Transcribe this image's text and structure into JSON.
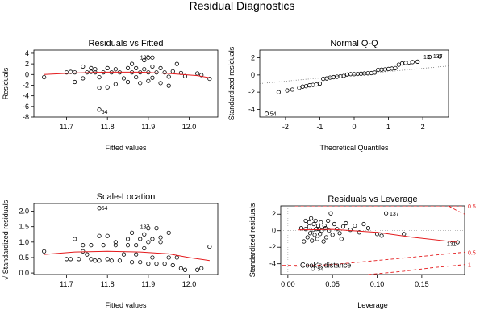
{
  "figure": {
    "title": "Residual Diagnostics"
  },
  "chart_data": [
    {
      "type": "scatter",
      "title": "Residuals vs Fitted",
      "xlabel": "Fitted values",
      "ylabel": "Residuals",
      "xlim": [
        11.62,
        12.07
      ],
      "ylim": [
        -8,
        4.6
      ],
      "xticks": [
        11.7,
        11.8,
        11.9,
        12.0
      ],
      "xtick_labels": [
        "11.7",
        "11.8",
        "11.9",
        "12.0"
      ],
      "yticks": [
        -8,
        -6,
        -4,
        -2,
        0,
        2,
        4
      ],
      "ytick_labels": [
        "-8",
        "-6",
        "-4",
        "-2",
        "0",
        "2",
        "4"
      ],
      "points": [
        [
          11.645,
          -0.5
        ],
        [
          11.7,
          0.4
        ],
        [
          11.71,
          0.5
        ],
        [
          11.72,
          -1.4
        ],
        [
          11.72,
          0.4
        ],
        [
          11.74,
          1.5
        ],
        [
          11.74,
          -0.7
        ],
        [
          11.75,
          0.4
        ],
        [
          11.76,
          1.2
        ],
        [
          11.76,
          0.5
        ],
        [
          11.77,
          1.0
        ],
        [
          11.77,
          0.4
        ],
        [
          11.78,
          -0.5
        ],
        [
          11.78,
          -2.5
        ],
        [
          11.79,
          0.4
        ],
        [
          11.8,
          1.2
        ],
        [
          11.8,
          -2.4
        ],
        [
          11.81,
          0.4
        ],
        [
          11.82,
          1.0
        ],
        [
          11.82,
          -1.8
        ],
        [
          11.83,
          0.4
        ],
        [
          11.84,
          -0.7
        ],
        [
          11.85,
          1.2
        ],
        [
          11.85,
          -1.4
        ],
        [
          11.86,
          0.4
        ],
        [
          11.86,
          2.0
        ],
        [
          11.87,
          1.2
        ],
        [
          11.87,
          -0.5
        ],
        [
          11.88,
          0.4
        ],
        [
          11.88,
          -1.6
        ],
        [
          11.89,
          1.0
        ],
        [
          11.89,
          2.7
        ],
        [
          11.9,
          0.4
        ],
        [
          11.9,
          -1.2
        ],
        [
          11.91,
          1.5
        ],
        [
          11.91,
          -0.6
        ],
        [
          11.92,
          0.4
        ],
        [
          11.93,
          1.2
        ],
        [
          11.93,
          -1.6
        ],
        [
          11.94,
          0.4
        ],
        [
          11.95,
          -0.4
        ],
        [
          11.95,
          -2.1
        ],
        [
          11.96,
          0.6
        ],
        [
          11.97,
          2.0
        ],
        [
          11.98,
          0.3
        ],
        [
          11.99,
          -0.3
        ],
        [
          12.02,
          0.2
        ],
        [
          12.03,
          -0.1
        ],
        [
          12.05,
          -0.8
        ],
        [
          11.9,
          3.2
        ],
        [
          11.91,
          3.2
        ],
        [
          11.78,
          -6.6
        ]
      ],
      "smooth": [
        [
          11.645,
          0.0
        ],
        [
          11.72,
          0.3
        ],
        [
          11.8,
          0.45
        ],
        [
          11.88,
          0.45
        ],
        [
          11.95,
          0.2
        ],
        [
          12.02,
          -0.2
        ],
        [
          12.05,
          -0.6
        ]
      ],
      "labels": [
        {
          "text": "137",
          "x": 11.88,
          "y": 3.3
        },
        {
          "text": "54",
          "x": 11.785,
          "y": -6.9
        }
      ]
    },
    {
      "type": "scatter",
      "title": "Normal Q-Q",
      "xlabel": "Theoretical Quantiles",
      "ylabel": "Standardized residuals",
      "xlim": [
        -2.75,
        2.75
      ],
      "ylim": [
        -4.9,
        2.9
      ],
      "xticks": [
        -2,
        -1,
        0,
        1,
        2
      ],
      "xtick_labels": [
        "-2",
        "-1",
        "0",
        "1",
        "2"
      ],
      "yticks": [
        -4,
        -2,
        0,
        2
      ],
      "ytick_labels": [
        "-4",
        "-2",
        "0",
        "2"
      ],
      "points": [
        [
          -2.55,
          -4.5
        ],
        [
          -2.2,
          -2.0
        ],
        [
          -1.95,
          -1.8
        ],
        [
          -1.8,
          -1.7
        ],
        [
          -1.6,
          -1.5
        ],
        [
          -1.5,
          -1.35
        ],
        [
          -1.4,
          -1.3
        ],
        [
          -1.3,
          -1.2
        ],
        [
          -1.2,
          -1.15
        ],
        [
          -1.1,
          -1.1
        ],
        [
          -1.0,
          -1.0
        ],
        [
          -0.9,
          -0.45
        ],
        [
          -0.8,
          -0.4
        ],
        [
          -0.7,
          -0.3
        ],
        [
          -0.6,
          -0.25
        ],
        [
          -0.5,
          -0.2
        ],
        [
          -0.4,
          -0.15
        ],
        [
          -0.3,
          -0.1
        ],
        [
          -0.2,
          0.05
        ],
        [
          -0.1,
          0.1
        ],
        [
          0.0,
          0.1
        ],
        [
          0.1,
          0.12
        ],
        [
          0.2,
          0.15
        ],
        [
          0.3,
          0.18
        ],
        [
          0.4,
          0.2
        ],
        [
          0.5,
          0.22
        ],
        [
          0.6,
          0.28
        ],
        [
          0.7,
          0.6
        ],
        [
          0.8,
          0.62
        ],
        [
          0.9,
          0.65
        ],
        [
          1.0,
          0.7
        ],
        [
          1.1,
          0.75
        ],
        [
          1.2,
          0.8
        ],
        [
          1.3,
          1.2
        ],
        [
          1.4,
          1.35
        ],
        [
          1.5,
          1.4
        ],
        [
          1.6,
          1.45
        ],
        [
          1.7,
          1.5
        ],
        [
          1.85,
          1.55
        ],
        [
          2.2,
          2.1
        ],
        [
          2.5,
          2.15
        ]
      ],
      "refline": [
        [
          -2.75,
          -1.0
        ],
        [
          2.75,
          1.05
        ]
      ],
      "labels": [
        {
          "text": "54",
          "x": -2.45,
          "y": -4.5
        },
        {
          "text": "13",
          "x": 2.02,
          "y": 2.15
        },
        {
          "text": "137",
          "x": 2.3,
          "y": 2.25
        }
      ]
    },
    {
      "type": "scatter",
      "title": "Scale-Location",
      "xlabel": "Fitted values",
      "ylabel": "√|Standardized residuals|",
      "xlim": [
        11.62,
        12.07
      ],
      "ylim": [
        -0.05,
        2.25
      ],
      "xticks": [
        11.7,
        11.8,
        11.9,
        12.0
      ],
      "xtick_labels": [
        "11.7",
        "11.8",
        "11.9",
        "12.0"
      ],
      "yticks": [
        0.0,
        0.5,
        1.0,
        1.5,
        2.0
      ],
      "ytick_labels": [
        "0.0",
        "0.5",
        "1.0",
        "1.5",
        "2.0"
      ],
      "points": [
        [
          11.645,
          0.7
        ],
        [
          11.7,
          0.45
        ],
        [
          11.71,
          0.45
        ],
        [
          11.72,
          1.1
        ],
        [
          11.73,
          0.45
        ],
        [
          11.74,
          0.9
        ],
        [
          11.74,
          0.7
        ],
        [
          11.75,
          0.6
        ],
        [
          11.76,
          0.9
        ],
        [
          11.76,
          0.45
        ],
        [
          11.77,
          0.4
        ],
        [
          11.78,
          1.2
        ],
        [
          11.78,
          0.4
        ],
        [
          11.79,
          0.9
        ],
        [
          11.8,
          0.45
        ],
        [
          11.8,
          1.2
        ],
        [
          11.81,
          0.4
        ],
        [
          11.82,
          0.9
        ],
        [
          11.82,
          1.0
        ],
        [
          11.83,
          0.4
        ],
        [
          11.84,
          0.6
        ],
        [
          11.85,
          0.9
        ],
        [
          11.85,
          1.1
        ],
        [
          11.86,
          0.35
        ],
        [
          11.86,
          1.3
        ],
        [
          11.87,
          0.9
        ],
        [
          11.87,
          0.6
        ],
        [
          11.88,
          0.35
        ],
        [
          11.88,
          1.1
        ],
        [
          11.89,
          0.8
        ],
        [
          11.89,
          1.25
        ],
        [
          11.9,
          0.3
        ],
        [
          11.9,
          1.0
        ],
        [
          11.91,
          1.1
        ],
        [
          11.91,
          0.5
        ],
        [
          11.92,
          0.3
        ],
        [
          11.93,
          1.0
        ],
        [
          11.93,
          1.15
        ],
        [
          11.94,
          0.3
        ],
        [
          11.95,
          0.5
        ],
        [
          11.95,
          1.3
        ],
        [
          11.96,
          0.25
        ],
        [
          11.97,
          0.5
        ],
        [
          11.98,
          0.15
        ],
        [
          11.99,
          0.1
        ],
        [
          12.02,
          0.1
        ],
        [
          12.03,
          0.15
        ],
        [
          12.05,
          0.85
        ],
        [
          11.9,
          1.45
        ],
        [
          11.92,
          1.45
        ],
        [
          11.78,
          2.1
        ]
      ],
      "smooth": [
        [
          11.645,
          0.6
        ],
        [
          11.72,
          0.68
        ],
        [
          11.8,
          0.7
        ],
        [
          11.88,
          0.68
        ],
        [
          11.95,
          0.62
        ],
        [
          12.0,
          0.5
        ],
        [
          12.05,
          0.4
        ]
      ],
      "labels": [
        {
          "text": "54",
          "x": 11.785,
          "y": 2.12
        },
        {
          "text": "137",
          "x": 11.88,
          "y": 1.5
        }
      ]
    },
    {
      "type": "scatter",
      "title": "Residuals vs Leverage",
      "xlabel": "Leverage",
      "ylabel": "Standardized residuals",
      "xlim": [
        -0.008,
        0.198
      ],
      "ylim": [
        -5.3,
        3.0
      ],
      "xticks": [
        0.0,
        0.05,
        0.1,
        0.15
      ],
      "xtick_labels": [
        "0.00",
        "0.05",
        "0.10",
        "0.15"
      ],
      "yticks": [
        -4,
        -2,
        0,
        2
      ],
      "ytick_labels": [
        "-4",
        "-2",
        "0",
        "2"
      ],
      "points": [
        [
          0.015,
          0.3
        ],
        [
          0.018,
          -1.3
        ],
        [
          0.02,
          1.2
        ],
        [
          0.02,
          0.2
        ],
        [
          0.022,
          -0.8
        ],
        [
          0.024,
          1.0
        ],
        [
          0.024,
          0.5
        ],
        [
          0.025,
          -0.3
        ],
        [
          0.026,
          1.5
        ],
        [
          0.027,
          -1.2
        ],
        [
          0.028,
          0.1
        ],
        [
          0.029,
          0.8
        ],
        [
          0.03,
          -0.5
        ],
        [
          0.031,
          1.2
        ],
        [
          0.032,
          0.2
        ],
        [
          0.033,
          -1.0
        ],
        [
          0.034,
          0.6
        ],
        [
          0.035,
          0.2
        ],
        [
          0.036,
          -0.4
        ],
        [
          0.037,
          1.0
        ],
        [
          0.038,
          0.0
        ],
        [
          0.04,
          -1.3
        ],
        [
          0.041,
          0.6
        ],
        [
          0.042,
          0.3
        ],
        [
          0.043,
          -0.8
        ],
        [
          0.045,
          1.2
        ],
        [
          0.046,
          0.0
        ],
        [
          0.048,
          2.1
        ],
        [
          0.05,
          -0.5
        ],
        [
          0.052,
          0.8
        ],
        [
          0.055,
          0.2
        ],
        [
          0.058,
          -0.3
        ],
        [
          0.06,
          -1.0
        ],
        [
          0.062,
          0.5
        ],
        [
          0.065,
          0.9
        ],
        [
          0.07,
          0.1
        ],
        [
          0.075,
          0.6
        ],
        [
          0.08,
          -0.2
        ],
        [
          0.085,
          0.8
        ],
        [
          0.09,
          0.3
        ],
        [
          0.1,
          -0.4
        ],
        [
          0.105,
          -0.6
        ],
        [
          0.11,
          2.1
        ],
        [
          0.13,
          -0.4
        ],
        [
          0.19,
          -1.4
        ],
        [
          0.028,
          -4.6
        ]
      ],
      "smooth": [
        [
          0.012,
          0.1
        ],
        [
          0.05,
          0.15
        ],
        [
          0.1,
          -0.2
        ],
        [
          0.14,
          -0.8
        ],
        [
          0.19,
          -1.4
        ]
      ],
      "cooks_lines": [
        {
          "label": "0.5",
          "points": [
            [
              0.008,
              -4.3
            ],
            [
              0.05,
              -4.1
            ],
            [
              0.1,
              -3.6
            ],
            [
              0.15,
              -3.1
            ],
            [
              0.198,
              -2.6
            ]
          ]
        },
        {
          "label": "1",
          "points": [
            [
              0.09,
              -5.3
            ],
            [
              0.13,
              -4.9
            ],
            [
              0.16,
              -4.5
            ],
            [
              0.198,
              -4.1
            ]
          ]
        },
        {
          "label": "0.5",
          "points": [
            [
              0.008,
              3.0
            ],
            [
              0.198,
              3.0
            ]
          ]
        },
        {
          "label": "",
          "points": [
            [
              0.18,
              3.0
            ],
            [
              0.19,
              2.4
            ],
            [
              0.198,
              2.0
            ]
          ]
        }
      ],
      "cooks_legend": "Cook's distance",
      "margin_labels": [
        {
          "text": "0.5",
          "y": 3.0
        },
        {
          "text": "0.5",
          "y": -2.6
        },
        {
          "text": "1",
          "y": -4.1
        }
      ],
      "labels": [
        {
          "text": "137",
          "x": 0.114,
          "y": 2.1
        },
        {
          "text": "131",
          "x": 0.178,
          "y": -1.55
        },
        {
          "text": "54",
          "x": 0.033,
          "y": -4.55
        }
      ]
    }
  ]
}
